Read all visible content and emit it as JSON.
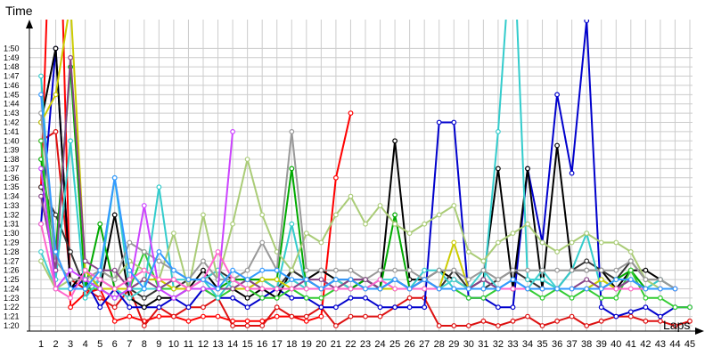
{
  "chart_data": {
    "type": "line",
    "title": "",
    "xlabel": "Laps",
    "ylabel": "Time",
    "xlim": [
      1,
      45
    ],
    "ylim": [
      "1:20",
      "1:51"
    ],
    "ylim_seconds": [
      80,
      111
    ],
    "grid": true,
    "x": [
      1,
      2,
      3,
      4,
      5,
      6,
      7,
      8,
      9,
      10,
      11,
      12,
      13,
      14,
      15,
      16,
      17,
      18,
      19,
      20,
      21,
      22,
      23,
      24,
      25,
      26,
      27,
      28,
      29,
      30,
      31,
      32,
      33,
      34,
      35,
      36,
      37,
      38,
      39,
      40,
      41,
      42,
      43,
      44,
      45
    ],
    "x_tick_labels": [
      "1",
      "2",
      "3",
      "4",
      "5",
      "6",
      "7",
      "8",
      "9",
      "10",
      "11",
      "12",
      "13",
      "14",
      "15",
      "16",
      "17",
      "18",
      "19",
      "20",
      "21",
      "22",
      "23",
      "24",
      "25",
      "26",
      "27",
      "28",
      "29",
      "30",
      "31",
      "32",
      "33",
      "34",
      "35",
      "36",
      "37",
      "38",
      "39",
      "40",
      "41",
      "42",
      "43",
      "44",
      "45"
    ],
    "y_tick_labels": [
      "1:20",
      "1:21",
      "1:22",
      "1:23",
      "1:24",
      "1:25",
      "1:26",
      "1:27",
      "1:28",
      "1:29",
      "1:30",
      "1:31",
      "1:32",
      "1:33",
      "1:34",
      "1:35",
      "1:36",
      "1:37",
      "1:38",
      "1:39",
      "1:40",
      "1:41",
      "1:42",
      "1:43",
      "1:44",
      "1:45",
      "1:46",
      "1:47",
      "1:48",
      "1:49",
      "1:50"
    ],
    "y_tick_values_seconds": [
      80,
      81,
      82,
      83,
      84,
      85,
      86,
      87,
      88,
      89,
      90,
      91,
      92,
      93,
      94,
      95,
      96,
      97,
      98,
      99,
      100,
      101,
      102,
      103,
      104,
      105,
      106,
      107,
      108,
      109,
      110
    ],
    "series": [
      {
        "color": "#ff0000",
        "values": [
          95,
          143,
          82,
          83.5,
          84,
          80.5,
          81,
          80.5,
          81,
          81,
          80.5,
          81,
          81,
          80.5,
          80.5,
          80.5,
          81,
          81,
          80.5,
          81,
          96,
          103,
          null,
          null,
          null,
          null,
          null,
          null,
          null,
          null,
          null,
          null,
          null,
          null,
          null,
          null,
          null,
          null,
          null,
          null,
          null,
          null,
          null,
          null,
          null
        ]
      },
      {
        "color": "#dd1111",
        "values": [
          100,
          101,
          85,
          84,
          83,
          82,
          84,
          80,
          82,
          81,
          82,
          82,
          83,
          80,
          80,
          80,
          82,
          81,
          81,
          82,
          80,
          81,
          81,
          81,
          82,
          83,
          83,
          80,
          80,
          80,
          80.5,
          80,
          80.5,
          81,
          80,
          80.5,
          81,
          80,
          80.5,
          81,
          81,
          80.5,
          80.5,
          80,
          80.5
        ]
      },
      {
        "color": "#0000cc",
        "values": [
          91,
          110,
          84,
          85,
          82,
          84,
          82,
          82,
          82,
          83,
          82,
          84,
          83,
          83,
          82,
          83,
          84,
          83,
          83,
          82,
          82,
          83,
          83,
          82,
          82,
          82,
          82,
          102,
          102,
          83,
          83,
          82,
          82,
          97,
          89,
          105,
          96.5,
          113,
          82,
          81,
          81.5,
          82,
          81,
          82,
          82
        ]
      },
      {
        "color": "#000000",
        "values": [
          102,
          110,
          84,
          86,
          84,
          92,
          83,
          82,
          83,
          83,
          84,
          86,
          84,
          84,
          83,
          84,
          83,
          86,
          85,
          86,
          85,
          84,
          85,
          84,
          100,
          85,
          85,
          86,
          85,
          84,
          85,
          97,
          84,
          97,
          84,
          99.5,
          86,
          86,
          86,
          84,
          86,
          86,
          85,
          null,
          null
        ]
      },
      {
        "color": "#333333",
        "values": [
          95,
          92,
          88,
          84,
          84,
          84,
          84,
          83,
          84,
          84,
          85,
          85,
          86,
          85,
          85,
          85,
          84,
          86,
          85,
          84,
          85,
          85,
          85,
          84,
          85,
          84,
          85,
          84,
          86,
          84,
          84,
          85,
          86,
          85,
          84,
          84,
          86,
          87,
          86,
          85,
          87,
          85,
          85,
          84,
          null
        ]
      },
      {
        "color": "#00aa00",
        "values": [
          98,
          88,
          108,
          84,
          91,
          84,
          84,
          84,
          84,
          84,
          84,
          84,
          84,
          85,
          85,
          85,
          85,
          97,
          84,
          84,
          84,
          84,
          85,
          84,
          92,
          84,
          84,
          84,
          84,
          84,
          84,
          84,
          84,
          84,
          84,
          84,
          84,
          84,
          84,
          85,
          86,
          84,
          84,
          null,
          null
        ]
      },
      {
        "color": "#33cc33",
        "values": [
          100,
          84,
          84,
          84,
          84,
          83,
          84,
          88,
          84,
          84,
          84,
          84,
          83,
          84,
          84,
          83,
          83,
          84,
          83,
          83,
          84,
          84,
          84,
          84,
          84,
          84,
          84,
          84,
          84,
          83,
          83,
          84,
          84,
          84,
          83,
          84,
          83,
          84,
          83,
          83,
          86,
          83,
          83,
          82,
          82
        ]
      },
      {
        "color": "#33cccc",
        "values": [
          107,
          85,
          100,
          83,
          85,
          96,
          84,
          84,
          95,
          84,
          84,
          85,
          83,
          85,
          84,
          85,
          84,
          91,
          84,
          84,
          84,
          85,
          84,
          84,
          85,
          84,
          86,
          86,
          84,
          84,
          84,
          101,
          124,
          85,
          85,
          84,
          86,
          90,
          84,
          84,
          85,
          84,
          85,
          84,
          null
        ]
      },
      {
        "color": "#44d0d0",
        "values": [
          88,
          84,
          84,
          84,
          85,
          84,
          83,
          84,
          84,
          85,
          85,
          85,
          86,
          84,
          85,
          84,
          84,
          85,
          84,
          84,
          85,
          84,
          84,
          85,
          85,
          84,
          84,
          84,
          85,
          84,
          86,
          84,
          85,
          84,
          86,
          84,
          84,
          84,
          85,
          84,
          85,
          84,
          84,
          84,
          null
        ]
      },
      {
        "color": "#cccc00",
        "values": [
          102,
          105,
          115,
          86,
          84,
          84,
          84,
          85,
          85,
          84,
          84,
          84,
          84,
          84,
          84,
          85,
          85,
          84,
          84,
          84,
          84,
          85,
          84,
          84,
          84,
          84,
          84,
          84,
          89,
          84,
          84,
          84,
          84,
          84,
          84,
          84,
          84,
          84,
          85,
          84,
          84,
          84,
          84,
          84,
          null
        ]
      },
      {
        "color": "#aacc77",
        "values": [
          87,
          84,
          85,
          85,
          86,
          85,
          87,
          86,
          85,
          90,
          84,
          92,
          85,
          91,
          98,
          92,
          88,
          86,
          90,
          89,
          92,
          94,
          91,
          93,
          91,
          90,
          91,
          92,
          93,
          88,
          87,
          89,
          90,
          91,
          89,
          88,
          89,
          90,
          89,
          89,
          88,
          85,
          84,
          84,
          null
        ]
      },
      {
        "color": "#999999",
        "values": [
          103,
          87,
          85,
          85,
          86,
          85,
          89,
          88,
          87,
          86,
          85,
          87,
          85,
          85,
          86,
          89,
          86,
          101,
          86,
          86,
          86,
          86,
          85,
          86,
          86,
          86,
          85,
          86,
          86,
          85,
          86,
          85,
          86,
          86,
          86,
          86,
          86,
          86,
          86,
          86,
          87,
          85,
          85,
          84,
          null
        ]
      },
      {
        "color": "#884488",
        "values": [
          94,
          86,
          109,
          87,
          86,
          86,
          84,
          85,
          84,
          85,
          84,
          84,
          84,
          84,
          85,
          84,
          84,
          84,
          85,
          85,
          84,
          85,
          85,
          84,
          85,
          84,
          85,
          84,
          84,
          84,
          85,
          84,
          84,
          84,
          84,
          84,
          84,
          85,
          84,
          84,
          85,
          84,
          84,
          84,
          null
        ]
      },
      {
        "color": "#cc44ff",
        "values": [
          97,
          84,
          86,
          85,
          84,
          83,
          84,
          93,
          84,
          83,
          84,
          84,
          84,
          101,
          null,
          null,
          null,
          null,
          null,
          null,
          null,
          null,
          null,
          null,
          null,
          null,
          null,
          null,
          null,
          null,
          null,
          null,
          null,
          null,
          null,
          null,
          null,
          null,
          null,
          null,
          null,
          null,
          null,
          null,
          null
        ]
      },
      {
        "color": "#ff66cc",
        "values": [
          91,
          84,
          83,
          86,
          85,
          84,
          85,
          86,
          85,
          85,
          84,
          85,
          88,
          85,
          84,
          84,
          84,
          84,
          84,
          84,
          84,
          84,
          84,
          85,
          84,
          84,
          84,
          84,
          84,
          84,
          84,
          84,
          84,
          84,
          84,
          84,
          84,
          84,
          84,
          84,
          84,
          84,
          84,
          84,
          null
        ]
      },
      {
        "color": "#3399ff",
        "values": [
          105,
          88,
          84,
          84,
          86,
          96,
          86,
          84,
          88,
          86,
          85,
          85,
          84,
          86,
          85,
          86,
          86,
          85,
          85,
          84,
          85,
          85,
          84,
          84,
          85,
          84,
          85,
          84,
          84,
          84,
          84,
          84,
          85,
          84,
          84,
          84,
          84,
          84,
          84,
          85,
          85,
          84,
          84,
          84,
          null
        ]
      }
    ]
  }
}
